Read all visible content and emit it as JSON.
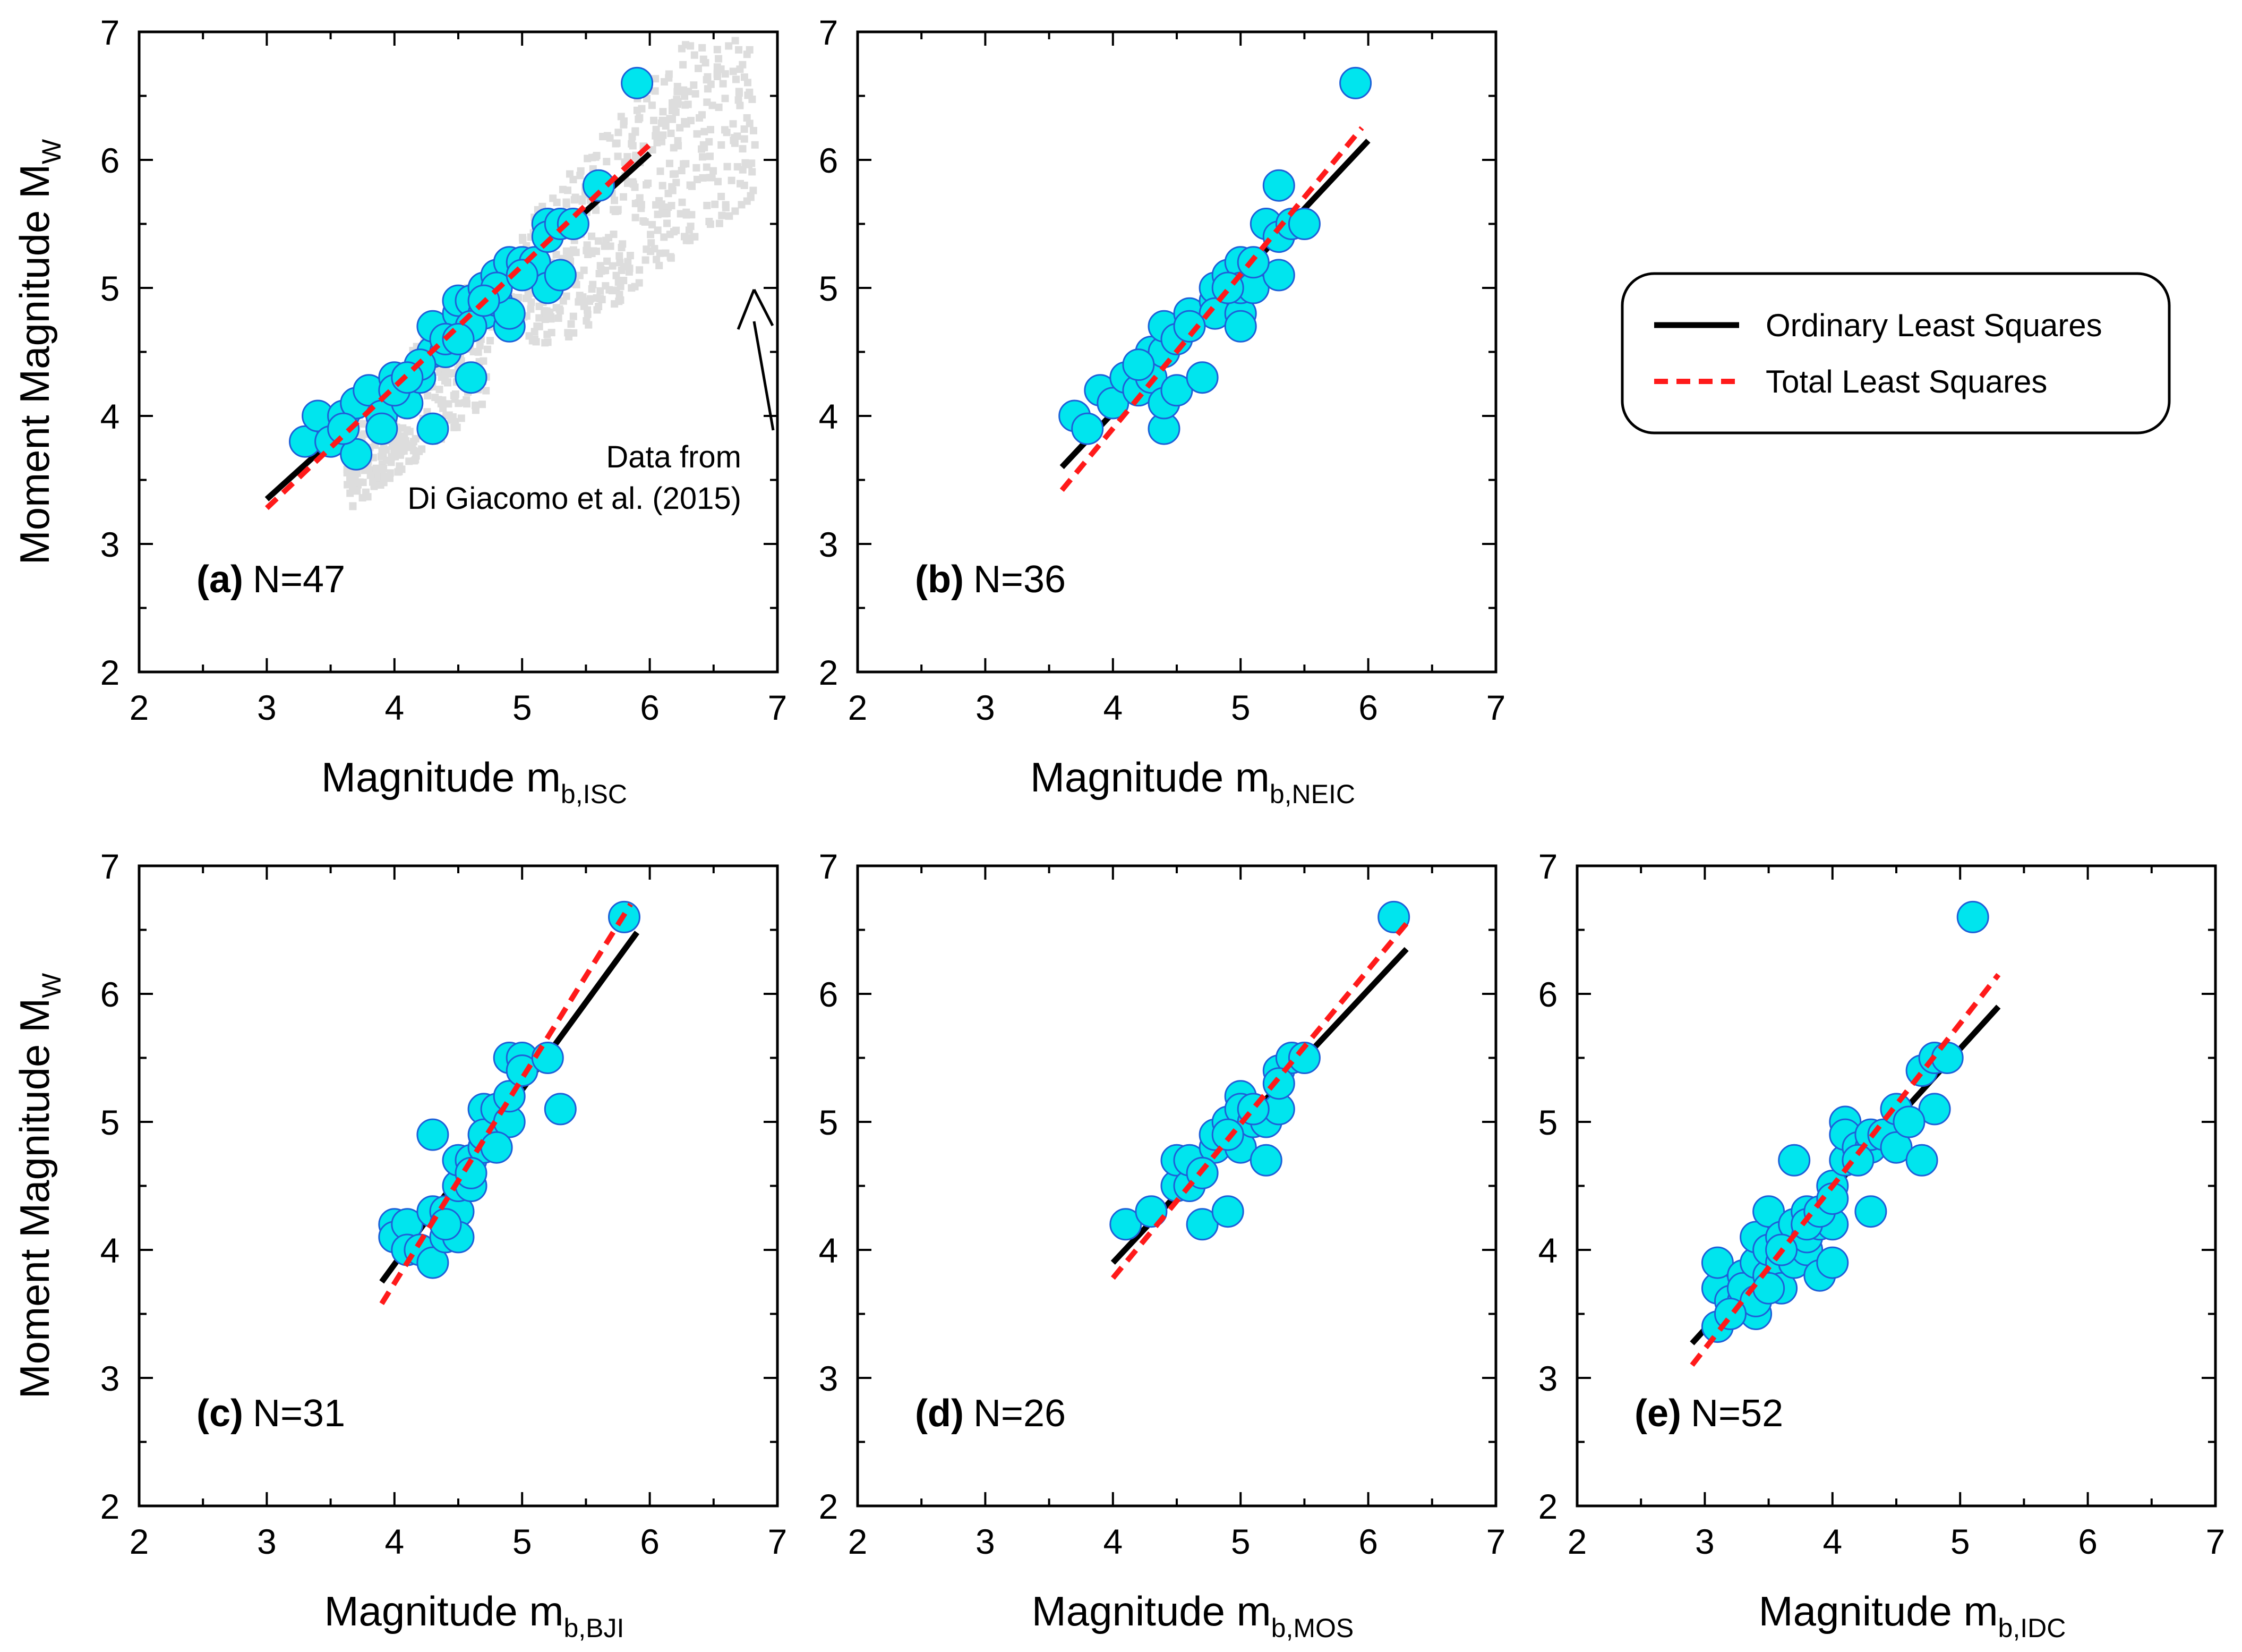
{
  "chart_data": [
    {
      "type": "scatter",
      "panel_tag": "(a)",
      "panel_n": "N=47",
      "xlabel_main": "Magnitude m",
      "xlabel_sub": "b,ISC",
      "ylabel_main": "Moment Magnitude M",
      "ylabel_sub": "W",
      "xlim": [
        2,
        7
      ],
      "ylim": [
        2,
        7
      ],
      "xticks": [
        "2",
        "3",
        "4",
        "5",
        "6",
        "7"
      ],
      "yticks": [
        "2",
        "3",
        "4",
        "5",
        "6",
        "7"
      ],
      "background_note": [
        "Data from",
        "Di Giacomo et al. (2015)"
      ],
      "ols": [
        [
          3.0,
          3.35
        ],
        [
          6.0,
          6.05
        ]
      ],
      "tls": [
        [
          3.0,
          3.28
        ],
        [
          6.0,
          6.12
        ]
      ],
      "points": [
        [
          3.3,
          3.8
        ],
        [
          3.4,
          4.0
        ],
        [
          3.5,
          3.8
        ],
        [
          3.6,
          4.0
        ],
        [
          3.7,
          3.7
        ],
        [
          3.7,
          4.1
        ],
        [
          3.8,
          4.2
        ],
        [
          3.9,
          4.0
        ],
        [
          3.9,
          3.9
        ],
        [
          4.0,
          4.3
        ],
        [
          4.1,
          4.1
        ],
        [
          4.2,
          4.3
        ],
        [
          4.3,
          4.5
        ],
        [
          4.3,
          3.9
        ],
        [
          4.3,
          4.7
        ],
        [
          4.4,
          4.5
        ],
        [
          4.5,
          4.8
        ],
        [
          4.5,
          4.9
        ],
        [
          4.6,
          4.3
        ],
        [
          4.6,
          4.9
        ],
        [
          4.7,
          5.0
        ],
        [
          4.7,
          4.8
        ],
        [
          4.8,
          4.9
        ],
        [
          4.8,
          5.1
        ],
        [
          4.9,
          4.7
        ],
        [
          4.9,
          4.8
        ],
        [
          4.9,
          5.2
        ],
        [
          5.0,
          5.2
        ],
        [
          5.1,
          5.2
        ],
        [
          5.2,
          5.0
        ],
        [
          5.2,
          5.5
        ],
        [
          5.2,
          5.4
        ],
        [
          5.3,
          5.5
        ],
        [
          5.3,
          5.1
        ],
        [
          5.4,
          5.5
        ],
        [
          5.6,
          5.8
        ],
        [
          5.9,
          6.6
        ],
        [
          4.0,
          4.2
        ],
        [
          4.2,
          4.4
        ],
        [
          4.4,
          4.6
        ],
        [
          4.6,
          4.7
        ],
        [
          4.8,
          5.0
        ],
        [
          5.0,
          5.1
        ],
        [
          3.6,
          3.9
        ],
        [
          4.1,
          4.3
        ],
        [
          4.5,
          4.6
        ],
        [
          4.7,
          4.9
        ]
      ]
    },
    {
      "type": "scatter",
      "panel_tag": "(b)",
      "panel_n": "N=36",
      "xlabel_main": "Magnitude m",
      "xlabel_sub": "b,NEIC",
      "xlim": [
        2,
        7
      ],
      "ylim": [
        2,
        7
      ],
      "xticks": [
        "2",
        "3",
        "4",
        "5",
        "6",
        "7"
      ],
      "yticks": [
        "2",
        "3",
        "4",
        "5",
        "6",
        "7"
      ],
      "ols": [
        [
          3.6,
          3.6
        ],
        [
          6.0,
          6.15
        ]
      ],
      "tls": [
        [
          3.6,
          3.42
        ],
        [
          5.95,
          6.25
        ]
      ],
      "points": [
        [
          3.7,
          4.0
        ],
        [
          3.8,
          3.9
        ],
        [
          3.9,
          4.2
        ],
        [
          4.0,
          4.1
        ],
        [
          4.1,
          4.3
        ],
        [
          4.2,
          4.2
        ],
        [
          4.3,
          4.5
        ],
        [
          4.3,
          4.3
        ],
        [
          4.4,
          4.5
        ],
        [
          4.4,
          4.7
        ],
        [
          4.4,
          3.9
        ],
        [
          4.4,
          4.1
        ],
        [
          4.5,
          4.2
        ],
        [
          4.5,
          4.6
        ],
        [
          4.6,
          4.8
        ],
        [
          4.7,
          4.3
        ],
        [
          4.8,
          4.9
        ],
        [
          4.8,
          5.0
        ],
        [
          4.8,
          4.8
        ],
        [
          4.9,
          5.1
        ],
        [
          5.0,
          4.8
        ],
        [
          5.0,
          5.2
        ],
        [
          5.0,
          4.7
        ],
        [
          5.0,
          5.0
        ],
        [
          5.1,
          5.0
        ],
        [
          5.2,
          5.5
        ],
        [
          5.3,
          5.8
        ],
        [
          5.3,
          5.1
        ],
        [
          5.3,
          5.4
        ],
        [
          5.4,
          5.5
        ],
        [
          5.5,
          5.5
        ],
        [
          5.9,
          6.6
        ],
        [
          4.6,
          4.7
        ],
        [
          4.9,
          5.0
        ],
        [
          5.1,
          5.2
        ],
        [
          4.2,
          4.4
        ]
      ]
    },
    {
      "type": "scatter",
      "panel_tag": "(c)",
      "panel_n": "N=31",
      "xlabel_main": "Magnitude m",
      "xlabel_sub": "b,BJI",
      "ylabel_main": "Moment Magnitude M",
      "ylabel_sub": "W",
      "xlim": [
        2,
        7
      ],
      "ylim": [
        2,
        7
      ],
      "xticks": [
        "2",
        "3",
        "4",
        "5",
        "6",
        "7"
      ],
      "yticks": [
        "2",
        "3",
        "4",
        "5",
        "6",
        "7"
      ],
      "ols": [
        [
          3.9,
          3.75
        ],
        [
          5.9,
          6.48
        ]
      ],
      "tls": [
        [
          3.9,
          3.58
        ],
        [
          5.85,
          6.7
        ]
      ],
      "points": [
        [
          4.0,
          4.2
        ],
        [
          4.0,
          4.1
        ],
        [
          4.1,
          4.2
        ],
        [
          4.1,
          4.0
        ],
        [
          4.2,
          4.0
        ],
        [
          4.3,
          3.9
        ],
        [
          4.3,
          4.3
        ],
        [
          4.3,
          4.9
        ],
        [
          4.4,
          4.1
        ],
        [
          4.4,
          4.3
        ],
        [
          4.5,
          4.3
        ],
        [
          4.5,
          4.5
        ],
        [
          4.5,
          4.7
        ],
        [
          4.5,
          4.1
        ],
        [
          4.6,
          4.5
        ],
        [
          4.6,
          4.7
        ],
        [
          4.7,
          4.8
        ],
        [
          4.7,
          5.1
        ],
        [
          4.7,
          4.9
        ],
        [
          4.8,
          5.1
        ],
        [
          4.9,
          5.0
        ],
        [
          4.9,
          5.2
        ],
        [
          4.9,
          5.5
        ],
        [
          5.0,
          5.5
        ],
        [
          5.0,
          5.4
        ],
        [
          5.2,
          5.5
        ],
        [
          5.3,
          5.1
        ],
        [
          5.8,
          6.6
        ],
        [
          4.4,
          4.2
        ],
        [
          4.6,
          4.6
        ],
        [
          4.8,
          4.8
        ]
      ]
    },
    {
      "type": "scatter",
      "panel_tag": "(d)",
      "panel_n": "N=26",
      "xlabel_main": "Magnitude m",
      "xlabel_sub": "b,MOS",
      "xlim": [
        2,
        7
      ],
      "ylim": [
        2,
        7
      ],
      "xticks": [
        "2",
        "3",
        "4",
        "5",
        "6",
        "7"
      ],
      "yticks": [
        "2",
        "3",
        "4",
        "5",
        "6",
        "7"
      ],
      "ols": [
        [
          4.0,
          3.9
        ],
        [
          6.3,
          6.35
        ]
      ],
      "tls": [
        [
          4.0,
          3.78
        ],
        [
          6.3,
          6.55
        ]
      ],
      "points": [
        [
          4.1,
          4.2
        ],
        [
          4.3,
          4.3
        ],
        [
          4.5,
          4.5
        ],
        [
          4.5,
          4.7
        ],
        [
          4.6,
          4.5
        ],
        [
          4.6,
          4.7
        ],
        [
          4.7,
          4.2
        ],
        [
          4.8,
          4.8
        ],
        [
          4.8,
          4.9
        ],
        [
          4.9,
          4.3
        ],
        [
          4.9,
          5.0
        ],
        [
          5.0,
          5.2
        ],
        [
          5.0,
          5.1
        ],
        [
          5.0,
          4.8
        ],
        [
          5.1,
          5.0
        ],
        [
          5.2,
          5.0
        ],
        [
          5.2,
          4.7
        ],
        [
          5.3,
          5.4
        ],
        [
          5.3,
          5.1
        ],
        [
          5.4,
          5.5
        ],
        [
          5.5,
          5.5
        ],
        [
          6.2,
          6.6
        ],
        [
          4.7,
          4.6
        ],
        [
          4.9,
          4.9
        ],
        [
          5.1,
          5.1
        ],
        [
          5.3,
          5.3
        ]
      ]
    },
    {
      "type": "scatter",
      "panel_tag": "(e)",
      "panel_n": "N=52",
      "xlabel_main": "Magnitude m",
      "xlabel_sub": "b,IDC",
      "xlim": [
        2,
        7
      ],
      "ylim": [
        2,
        7
      ],
      "xticks": [
        "2",
        "3",
        "4",
        "5",
        "6",
        "7"
      ],
      "yticks": [
        "2",
        "3",
        "4",
        "5",
        "6",
        "7"
      ],
      "ols": [
        [
          2.9,
          3.27
        ],
        [
          5.3,
          5.9
        ]
      ],
      "tls": [
        [
          2.9,
          3.1
        ],
        [
          5.3,
          6.15
        ]
      ],
      "points": [
        [
          3.1,
          3.4
        ],
        [
          3.1,
          3.7
        ],
        [
          3.1,
          3.9
        ],
        [
          3.2,
          3.6
        ],
        [
          3.3,
          3.6
        ],
        [
          3.3,
          3.8
        ],
        [
          3.3,
          3.7
        ],
        [
          3.4,
          3.5
        ],
        [
          3.4,
          3.9
        ],
        [
          3.4,
          4.1
        ],
        [
          3.4,
          3.6
        ],
        [
          3.5,
          3.8
        ],
        [
          3.5,
          4.0
        ],
        [
          3.5,
          4.3
        ],
        [
          3.6,
          3.9
        ],
        [
          3.6,
          4.1
        ],
        [
          3.6,
          3.7
        ],
        [
          3.7,
          4.2
        ],
        [
          3.7,
          3.9
        ],
        [
          3.7,
          4.7
        ],
        [
          3.8,
          4.0
        ],
        [
          3.8,
          4.3
        ],
        [
          3.8,
          4.1
        ],
        [
          3.9,
          3.8
        ],
        [
          3.9,
          4.2
        ],
        [
          4.0,
          4.2
        ],
        [
          4.0,
          4.5
        ],
        [
          4.0,
          3.9
        ],
        [
          4.1,
          4.7
        ],
        [
          4.1,
          5.0
        ],
        [
          4.1,
          4.9
        ],
        [
          4.2,
          4.8
        ],
        [
          4.3,
          4.8
        ],
        [
          4.3,
          4.3
        ],
        [
          4.3,
          4.9
        ],
        [
          4.4,
          4.9
        ],
        [
          4.5,
          5.1
        ],
        [
          4.5,
          4.8
        ],
        [
          4.7,
          4.7
        ],
        [
          4.7,
          5.4
        ],
        [
          4.8,
          5.1
        ],
        [
          4.8,
          5.5
        ],
        [
          4.9,
          5.5
        ],
        [
          5.1,
          6.6
        ],
        [
          3.2,
          3.5
        ],
        [
          3.5,
          3.7
        ],
        [
          3.6,
          4.0
        ],
        [
          3.8,
          4.2
        ],
        [
          3.9,
          4.3
        ],
        [
          4.0,
          4.4
        ],
        [
          4.2,
          4.7
        ],
        [
          4.6,
          5.0
        ]
      ]
    }
  ],
  "legend": {
    "ols_label": "Ordinary Least Squares",
    "tls_label": "Total Least Squares",
    "ols_color": "#000000",
    "tls_color": "#FF1A1A"
  },
  "colors": {
    "point_fill": "#00E5EE",
    "point_edge": "#1E5FD8",
    "background_cloud": "#DDDDDD"
  }
}
